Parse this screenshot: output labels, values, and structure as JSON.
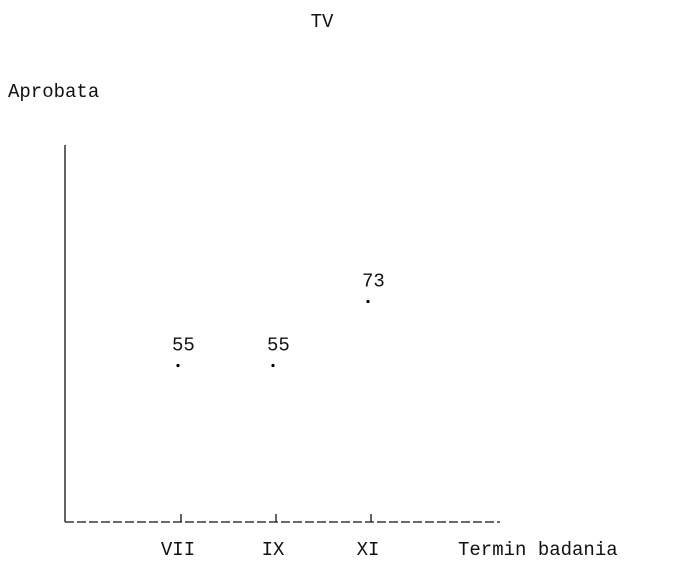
{
  "chart_data": {
    "type": "dot",
    "title": "TV",
    "y_label": "Aprobata",
    "x_label": "Termin badania",
    "categories": [
      "VII",
      "IX",
      "XI"
    ],
    "values": [
      55,
      55,
      73
    ],
    "color": "#000000",
    "ylim": [
      11,
      117
    ]
  }
}
